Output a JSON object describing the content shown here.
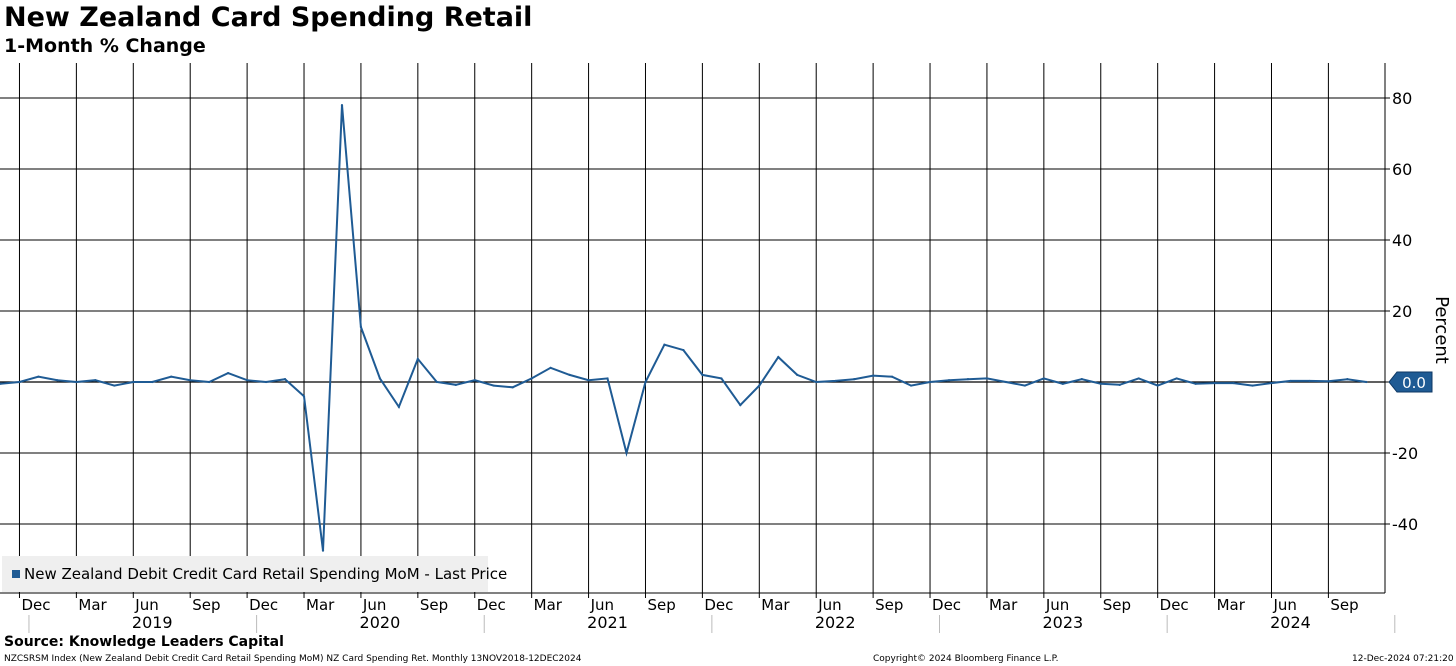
{
  "chart_data": {
    "type": "line",
    "title": "New Zealand Card Spending Retail",
    "subtitle": "1-Month % Change",
    "ylabel": "Percent",
    "ylim": [
      -60,
      90
    ],
    "yticks": [
      80,
      60,
      40,
      20,
      0,
      -20,
      -40
    ],
    "x_month_labels": [
      "Dec",
      "Mar",
      "Jun",
      "Sep",
      "Dec",
      "Mar",
      "Jun",
      "Sep",
      "Dec",
      "Mar",
      "Jun",
      "Sep",
      "Dec",
      "Mar",
      "Jun",
      "Sep",
      "Dec",
      "Mar",
      "Jun",
      "Sep",
      "Dec",
      "Mar",
      "Jun",
      "Sep"
    ],
    "x_year_labels": [
      "2019",
      "2020",
      "2021",
      "2022",
      "2023",
      "2024"
    ],
    "x_start": "2018-11",
    "series": [
      {
        "name": "New Zealand Debit Credit Card Retail Spending MoM - Last Price",
        "color": "#1f5b94",
        "values": [
          -0.5,
          0.0,
          1.5,
          0.5,
          0.0,
          0.5,
          -1.0,
          0.0,
          0.0,
          1.5,
          0.5,
          0.0,
          2.5,
          0.5,
          0.0,
          0.8,
          -4.0,
          -47.5,
          78.0,
          15.5,
          1.0,
          -7.0,
          6.5,
          0.0,
          -0.8,
          0.5,
          -1.0,
          -1.5,
          1.0,
          4.0,
          2.0,
          0.5,
          1.0,
          -20.0,
          0.0,
          10.5,
          9.0,
          2.0,
          1.0,
          -6.5,
          -1.0,
          7.0,
          2.0,
          0.0,
          0.3,
          0.8,
          1.8,
          1.5,
          -1.0,
          0.0,
          0.5,
          0.8,
          1.0,
          0.0,
          -1.0,
          1.0,
          -0.5,
          0.8,
          -0.5,
          -0.8,
          1.0,
          -1.0,
          1.0,
          -0.5,
          -0.3,
          -0.3,
          -1.0,
          -0.3,
          0.3,
          0.3,
          0.2,
          0.8,
          0.0
        ]
      }
    ],
    "last_value_label": "0.0",
    "grid": true,
    "legend_position": "bottom-left"
  },
  "footer": {
    "source": "Source: Knowledge Leaders Capital",
    "index_note": "NZCSRSM Index (New Zealand Debit Credit Card Retail Spending MoM) NZ Card Spending Ret.  Monthly 13NOV2018-12DEC2024",
    "copyright": "Copyright© 2024 Bloomberg Finance L.P.",
    "timestamp": "12-Dec-2024 07:21:20"
  }
}
